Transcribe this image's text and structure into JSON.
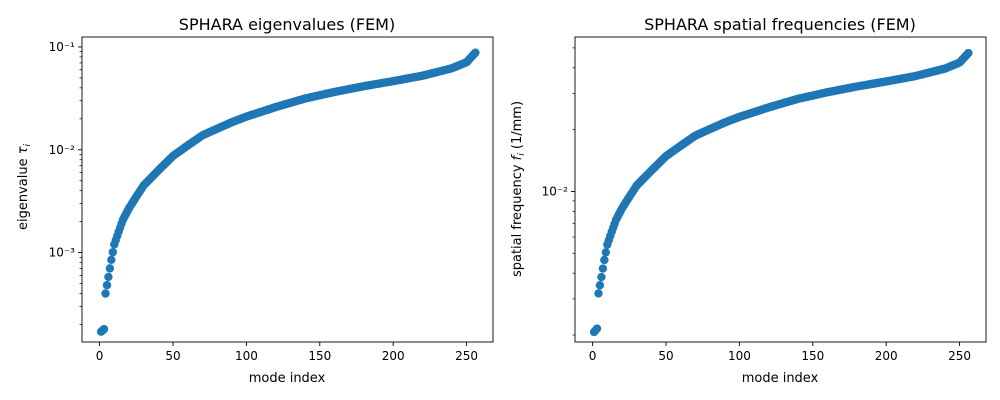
{
  "colors": {
    "marker": "#1f77b4"
  },
  "chart_data": [
    {
      "type": "scatter",
      "title": "SPHARA eigenvalues (FEM)",
      "xlabel": "mode index",
      "ylabel_prefix": "eigenvalue ",
      "ylabel_symbol": "τ",
      "ylabel_subscript": "i",
      "ylabel_suffix": "",
      "yscale": "log",
      "xlim": [
        -12,
        268
      ],
      "ylim": [
        0.000135,
        0.125
      ],
      "xticks": [
        0,
        50,
        100,
        150,
        200,
        250
      ],
      "xtick_labels": [
        "0",
        "50",
        "100",
        "150",
        "200",
        "250"
      ],
      "yticks": [
        0.001,
        0.01,
        0.1
      ],
      "ytick_labels": [
        "10⁻³",
        "10⁻²",
        "10⁻¹"
      ],
      "x_range": [
        1,
        256
      ],
      "curve_points": [
        [
          1,
          0.00017
        ],
        [
          3,
          0.00018
        ],
        [
          4,
          0.0004
        ],
        [
          6,
          0.00058
        ],
        [
          8,
          0.00085
        ],
        [
          10,
          0.0012
        ],
        [
          13,
          0.0016
        ],
        [
          16,
          0.0021
        ],
        [
          20,
          0.0027
        ],
        [
          25,
          0.0035
        ],
        [
          30,
          0.0045
        ],
        [
          40,
          0.0063
        ],
        [
          50,
          0.0087
        ],
        [
          60,
          0.011
        ],
        [
          70,
          0.0138
        ],
        [
          80,
          0.016
        ],
        [
          90,
          0.0185
        ],
        [
          100,
          0.021
        ],
        [
          120,
          0.026
        ],
        [
          140,
          0.0315
        ],
        [
          160,
          0.0365
        ],
        [
          180,
          0.0415
        ],
        [
          200,
          0.0465
        ],
        [
          220,
          0.0525
        ],
        [
          240,
          0.062
        ],
        [
          250,
          0.071
        ],
        [
          256,
          0.088
        ]
      ]
    },
    {
      "type": "scatter",
      "title": "SPHARA spatial frequencies (FEM)",
      "xlabel": "mode index",
      "ylabel_prefix": "spatial frequency ",
      "ylabel_symbol": "f",
      "ylabel_subscript": "i",
      "ylabel_suffix": " (1/mm)",
      "yscale": "log",
      "xlim": [
        -12,
        268
      ],
      "ylim": [
        0.00185,
        0.0565
      ],
      "xticks": [
        0,
        50,
        100,
        150,
        200,
        250
      ],
      "xtick_labels": [
        "0",
        "50",
        "100",
        "150",
        "200",
        "250"
      ],
      "yticks": [
        0.01
      ],
      "ytick_labels": [
        "10⁻²"
      ],
      "x_range": [
        1,
        256
      ],
      "curve_points": [
        [
          1,
          0.00207
        ],
        [
          3,
          0.00215
        ],
        [
          4,
          0.00319
        ],
        [
          6,
          0.00383
        ],
        [
          8,
          0.00464
        ],
        [
          10,
          0.00551
        ],
        [
          13,
          0.00637
        ],
        [
          16,
          0.00729
        ],
        [
          20,
          0.00827
        ],
        [
          25,
          0.00942
        ],
        [
          30,
          0.01068
        ],
        [
          40,
          0.01263
        ],
        [
          50,
          0.01485
        ],
        [
          60,
          0.01669
        ],
        [
          70,
          0.0187
        ],
        [
          80,
          0.02013
        ],
        [
          90,
          0.02165
        ],
        [
          100,
          0.02306
        ],
        [
          120,
          0.02566
        ],
        [
          140,
          0.02825
        ],
        [
          160,
          0.03041
        ],
        [
          180,
          0.03242
        ],
        [
          200,
          0.03432
        ],
        [
          220,
          0.03646
        ],
        [
          240,
          0.03963
        ],
        [
          250,
          0.04241
        ],
        [
          256,
          0.04721
        ]
      ]
    }
  ]
}
